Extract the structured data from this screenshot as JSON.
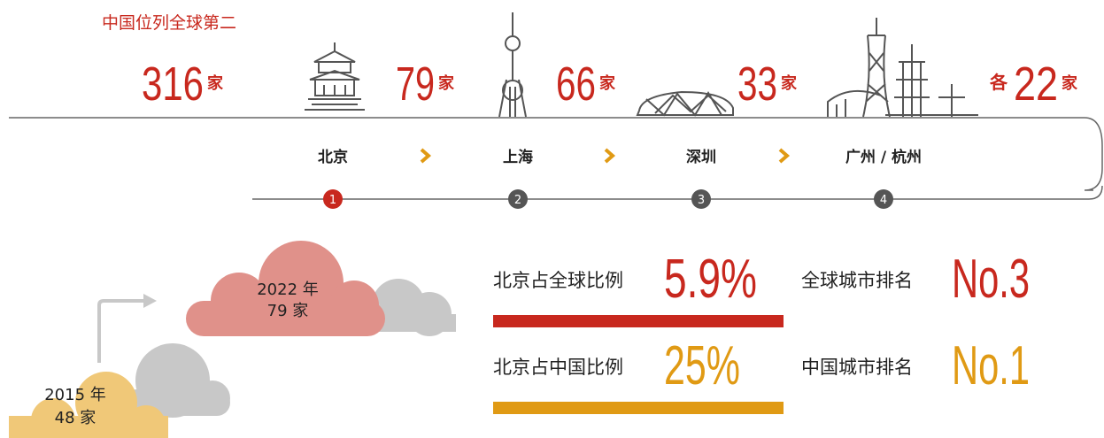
{
  "header": {
    "title": "中国位列全球第二"
  },
  "counts": [
    {
      "value": "316",
      "unit": "家"
    },
    {
      "value": "79",
      "unit": "家"
    },
    {
      "value": "66",
      "unit": "家"
    },
    {
      "value": "33",
      "unit": "家"
    },
    {
      "prefix": "各",
      "value": "22",
      "unit": "家"
    }
  ],
  "cities": [
    {
      "name": "北京",
      "step": "1"
    },
    {
      "name": "上海",
      "step": "2"
    },
    {
      "name": "深圳",
      "step": "3"
    },
    {
      "name": "广州 / 杭州",
      "step": "4"
    }
  ],
  "clouds": [
    {
      "year": "2022 年",
      "count": "79 家"
    },
    {
      "year": "2015 年",
      "count": "48 家"
    }
  ],
  "stats": [
    {
      "label": "北京占全球比例",
      "value": "5.9%",
      "rank_label": "全球城市排名",
      "rank": "No.3"
    },
    {
      "label": "北京占中国比例",
      "value": "25%",
      "rank_label": "中国城市排名",
      "rank": "No.1"
    }
  ]
}
